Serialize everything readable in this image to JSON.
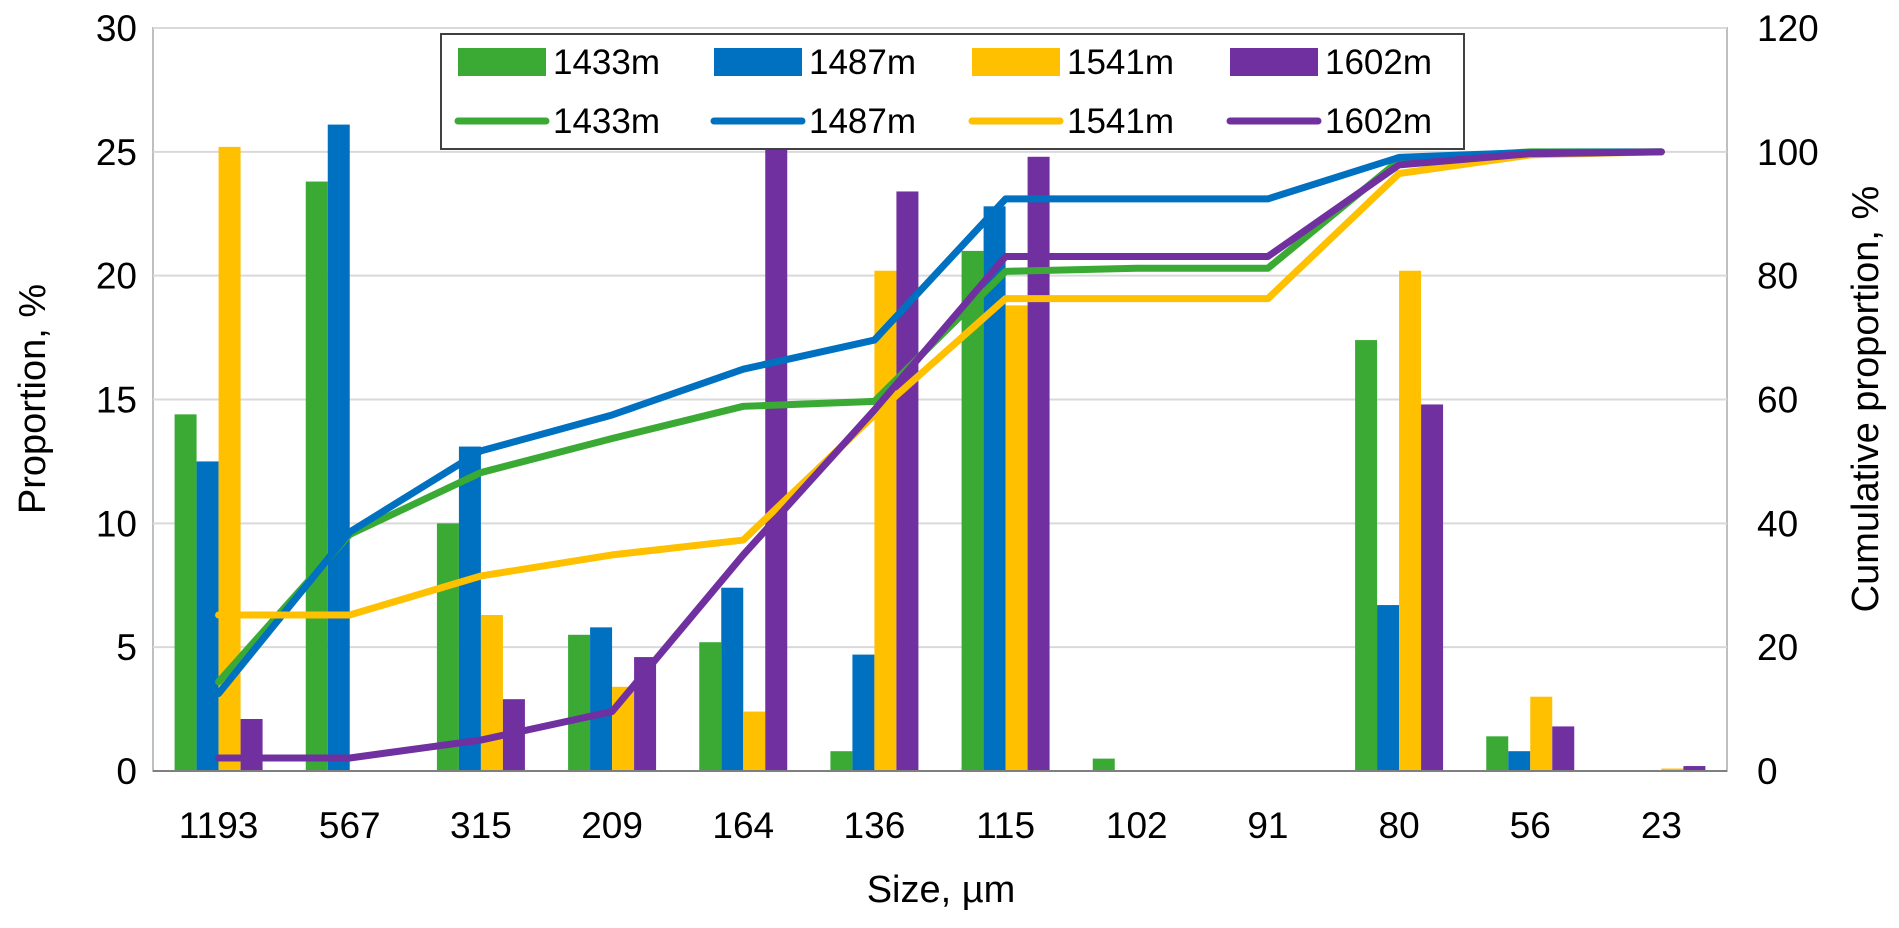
{
  "chart_data": {
    "type": "bar+line",
    "title": "",
    "xlabel": "Size, µm",
    "ylabel": "Proportion, %",
    "y2label": "Cumulative proportion, %",
    "ylim": [
      0,
      30
    ],
    "y2lim": [
      0,
      120
    ],
    "yticks": [
      "0",
      "5",
      "10",
      "15",
      "20",
      "25",
      "30"
    ],
    "y2ticks": [
      "0",
      "20",
      "40",
      "60",
      "80",
      "100",
      "120"
    ],
    "grid": true,
    "legend_position": "top-center",
    "categories": [
      "1193",
      "567",
      "315",
      "209",
      "164",
      "136",
      "115",
      "102",
      "91",
      "80",
      "56",
      "23"
    ],
    "bar_series": [
      {
        "name": "1433m",
        "color": "#3aaa35",
        "values": [
          14.4,
          23.8,
          10.0,
          5.5,
          5.2,
          0.8,
          21.0,
          0.5,
          0.0,
          17.4,
          1.4,
          0.0
        ]
      },
      {
        "name": "1487m",
        "color": "#0070c0",
        "values": [
          12.5,
          26.1,
          13.1,
          5.8,
          7.4,
          4.7,
          22.8,
          0.0,
          0.0,
          6.7,
          0.8,
          0.0
        ]
      },
      {
        "name": "1541m",
        "color": "#ffc000",
        "values": [
          25.2,
          0.0,
          6.3,
          3.4,
          2.4,
          20.2,
          18.8,
          0.0,
          0.0,
          20.2,
          3.0,
          0.1
        ]
      },
      {
        "name": "1602m",
        "color": "#7030a0",
        "values": [
          2.1,
          0.0,
          2.9,
          4.6,
          25.3,
          23.4,
          24.8,
          0.0,
          0.0,
          14.8,
          1.8,
          0.2
        ]
      }
    ],
    "line_series": [
      {
        "name": "1433m",
        "color": "#3aaa35",
        "values": [
          14.4,
          38.2,
          48.2,
          53.7,
          58.9,
          59.7,
          80.7,
          81.2,
          81.2,
          98.6,
          100.0,
          100.0
        ]
      },
      {
        "name": "1487m",
        "color": "#0070c0",
        "values": [
          12.5,
          38.6,
          51.7,
          57.5,
          64.9,
          69.6,
          92.4,
          92.4,
          92.4,
          99.1,
          99.9,
          100.0
        ]
      },
      {
        "name": "1541m",
        "color": "#ffc000",
        "values": [
          25.2,
          25.2,
          31.5,
          34.9,
          37.3,
          57.5,
          76.3,
          76.3,
          76.3,
          96.5,
          99.5,
          100.0
        ]
      },
      {
        "name": "1602m",
        "color": "#7030a0",
        "values": [
          2.1,
          2.1,
          5.0,
          9.6,
          34.9,
          58.3,
          83.1,
          83.1,
          83.1,
          97.9,
          99.7,
          100.0
        ]
      }
    ]
  }
}
